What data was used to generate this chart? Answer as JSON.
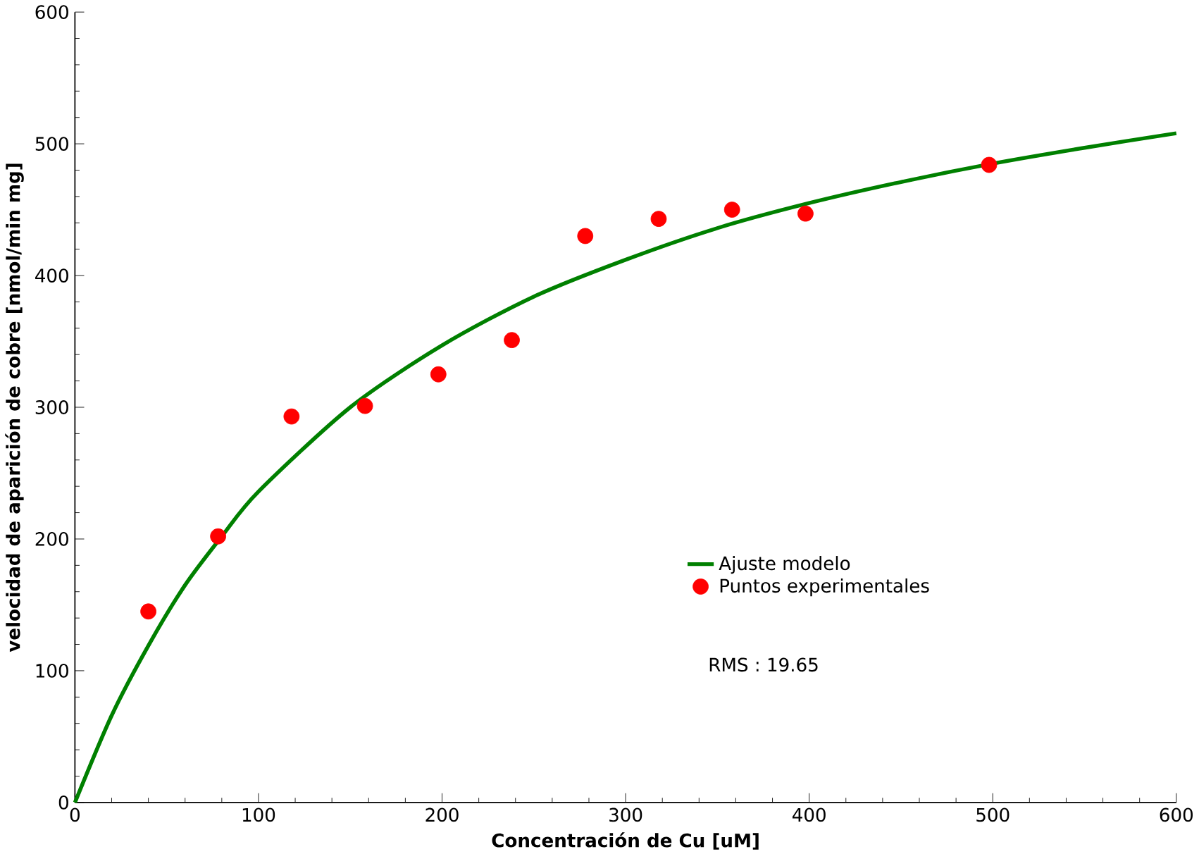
{
  "chart_data": {
    "type": "scatter",
    "xlabel": "Concentración de Cu [uM]",
    "ylabel": "velocidad de aparición de cobre [nmol/min mg]",
    "xlim": [
      0,
      600
    ],
    "ylim": [
      0,
      600
    ],
    "xticks": [
      0,
      100,
      200,
      300,
      400,
      500,
      600
    ],
    "yticks": [
      0,
      100,
      200,
      300,
      400,
      500,
      600
    ],
    "grid": false,
    "legend": "bottom right",
    "annotations": [
      "RMS : 19.65"
    ],
    "series": [
      {
        "name": "Ajuste modelo",
        "type": "line",
        "color": "#008000",
        "marker": "none",
        "line_style": "solid",
        "x": [
          0,
          20,
          40,
          60,
          80,
          100,
          150,
          200,
          250,
          300,
          350,
          400,
          450,
          500,
          550,
          600
        ],
        "values": [
          0,
          66,
          119,
          165,
          202,
          236,
          300,
          347,
          384,
          412,
          436,
          455,
          471,
          485,
          497,
          508
        ]
      },
      {
        "name": "Puntos experimentales",
        "color": "#ff0000",
        "marker": "circle",
        "x": [
          40,
          78,
          118,
          158,
          198,
          238,
          278,
          318,
          358,
          398,
          498
        ],
        "values": [
          145,
          202,
          293,
          301,
          325,
          351,
          430,
          443,
          450,
          447,
          484
        ]
      }
    ]
  }
}
